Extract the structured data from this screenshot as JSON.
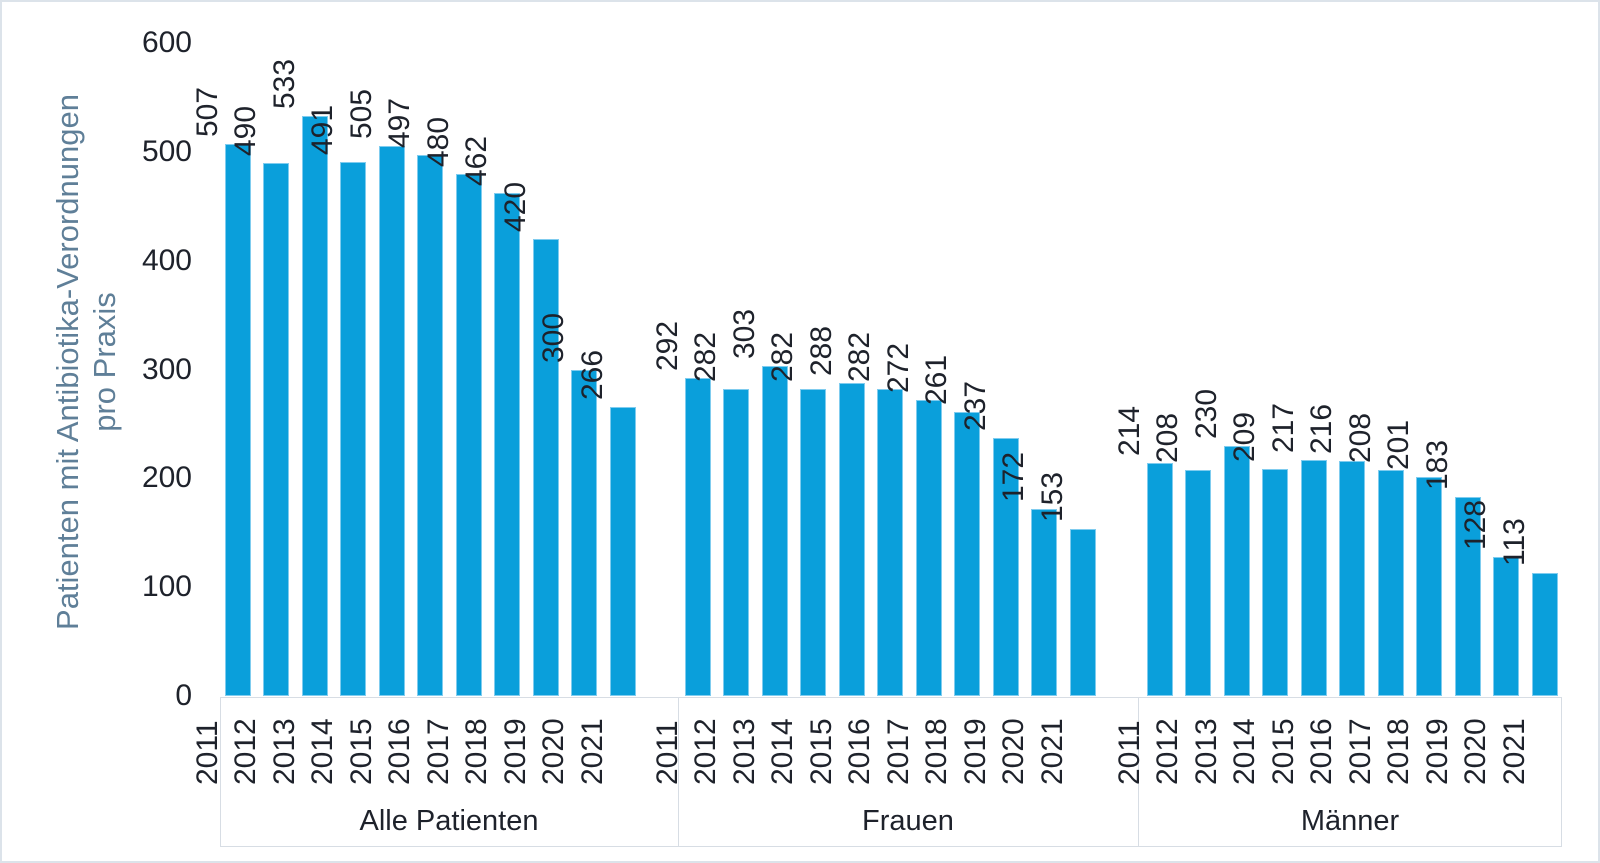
{
  "chart_data": {
    "type": "bar",
    "title": "",
    "ylabel_line1": "Patienten mit Antibiotika-Verordnungen",
    "ylabel_line2": "pro Praxis",
    "ylim": [
      0,
      600
    ],
    "y_ticks": [
      0,
      100,
      200,
      300,
      400,
      500,
      600
    ],
    "grid": false,
    "legend": false,
    "categories": [
      "2011",
      "2012",
      "2013",
      "2014",
      "2015",
      "2016",
      "2017",
      "2018",
      "2019",
      "2020",
      "2021"
    ],
    "series": [
      {
        "name": "Alle Patienten",
        "values": [
          507,
          490,
          533,
          491,
          505,
          497,
          480,
          462,
          420,
          300,
          266
        ]
      },
      {
        "name": "Frauen",
        "values": [
          292,
          282,
          303,
          282,
          288,
          282,
          272,
          261,
          237,
          172,
          153
        ]
      },
      {
        "name": "Männer",
        "values": [
          214,
          208,
          230,
          209,
          217,
          216,
          208,
          201,
          183,
          128,
          113
        ]
      }
    ],
    "colors": {
      "bar_fill": "#0a9fdb",
      "bar_border": "#7fccef",
      "text_dark": "#1e222b",
      "axis_title": "#5f7f98",
      "outer_border": "#dce3ea",
      "box_border": "#d7dde4"
    }
  }
}
